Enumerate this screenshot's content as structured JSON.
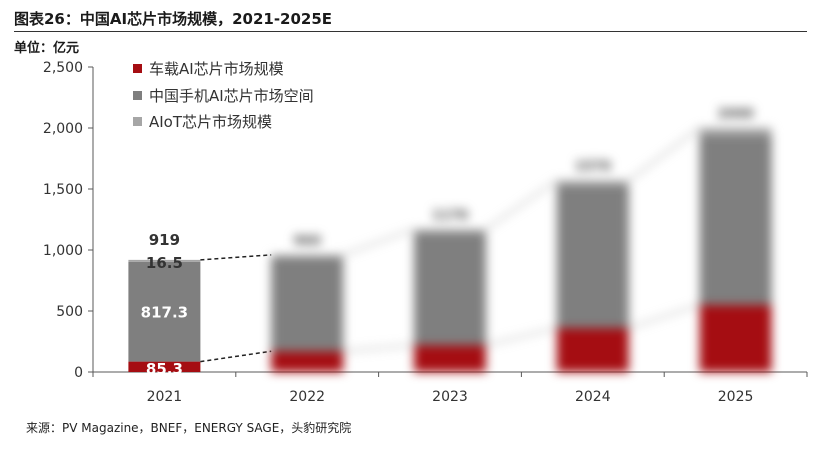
{
  "title": "图表26：中国AI芯片市场规模，2021-2025E",
  "unit": "单位：亿元",
  "source": "来源：PV Magazine，BNEF，ENERGY SAGE，头豹研究院",
  "colors": {
    "auto": "#a50d12",
    "phone": "#7f7f7f",
    "aiot": "#a6a6a6",
    "axis": "#595959"
  },
  "chart_data": {
    "type": "bar",
    "stacked": true,
    "categories": [
      "2021",
      "2022",
      "2023",
      "2024",
      "2025"
    ],
    "series": [
      {
        "name": "车载AI芯片市场规模",
        "values": [
          85.3,
          170,
          220,
          360,
          550
        ]
      },
      {
        "name": "中国手机AI芯片市场空间",
        "values": [
          817.3,
          770,
          920,
          1170,
          1390
        ]
      },
      {
        "name": "AIoT芯片市场规模",
        "values": [
          16.5,
          20,
          30,
          40,
          60
        ]
      }
    ],
    "totals": [
      919,
      960,
      1170,
      1570,
      2000
    ],
    "labels_2021": {
      "total": "919",
      "aiot": "16.5",
      "phone": "817.3",
      "auto": "85.3"
    },
    "yticks": [
      "0",
      "500",
      "1,000",
      "1,500",
      "2,000",
      "2,500"
    ],
    "ylim": [
      0,
      2500
    ],
    "legend": "top-left"
  }
}
